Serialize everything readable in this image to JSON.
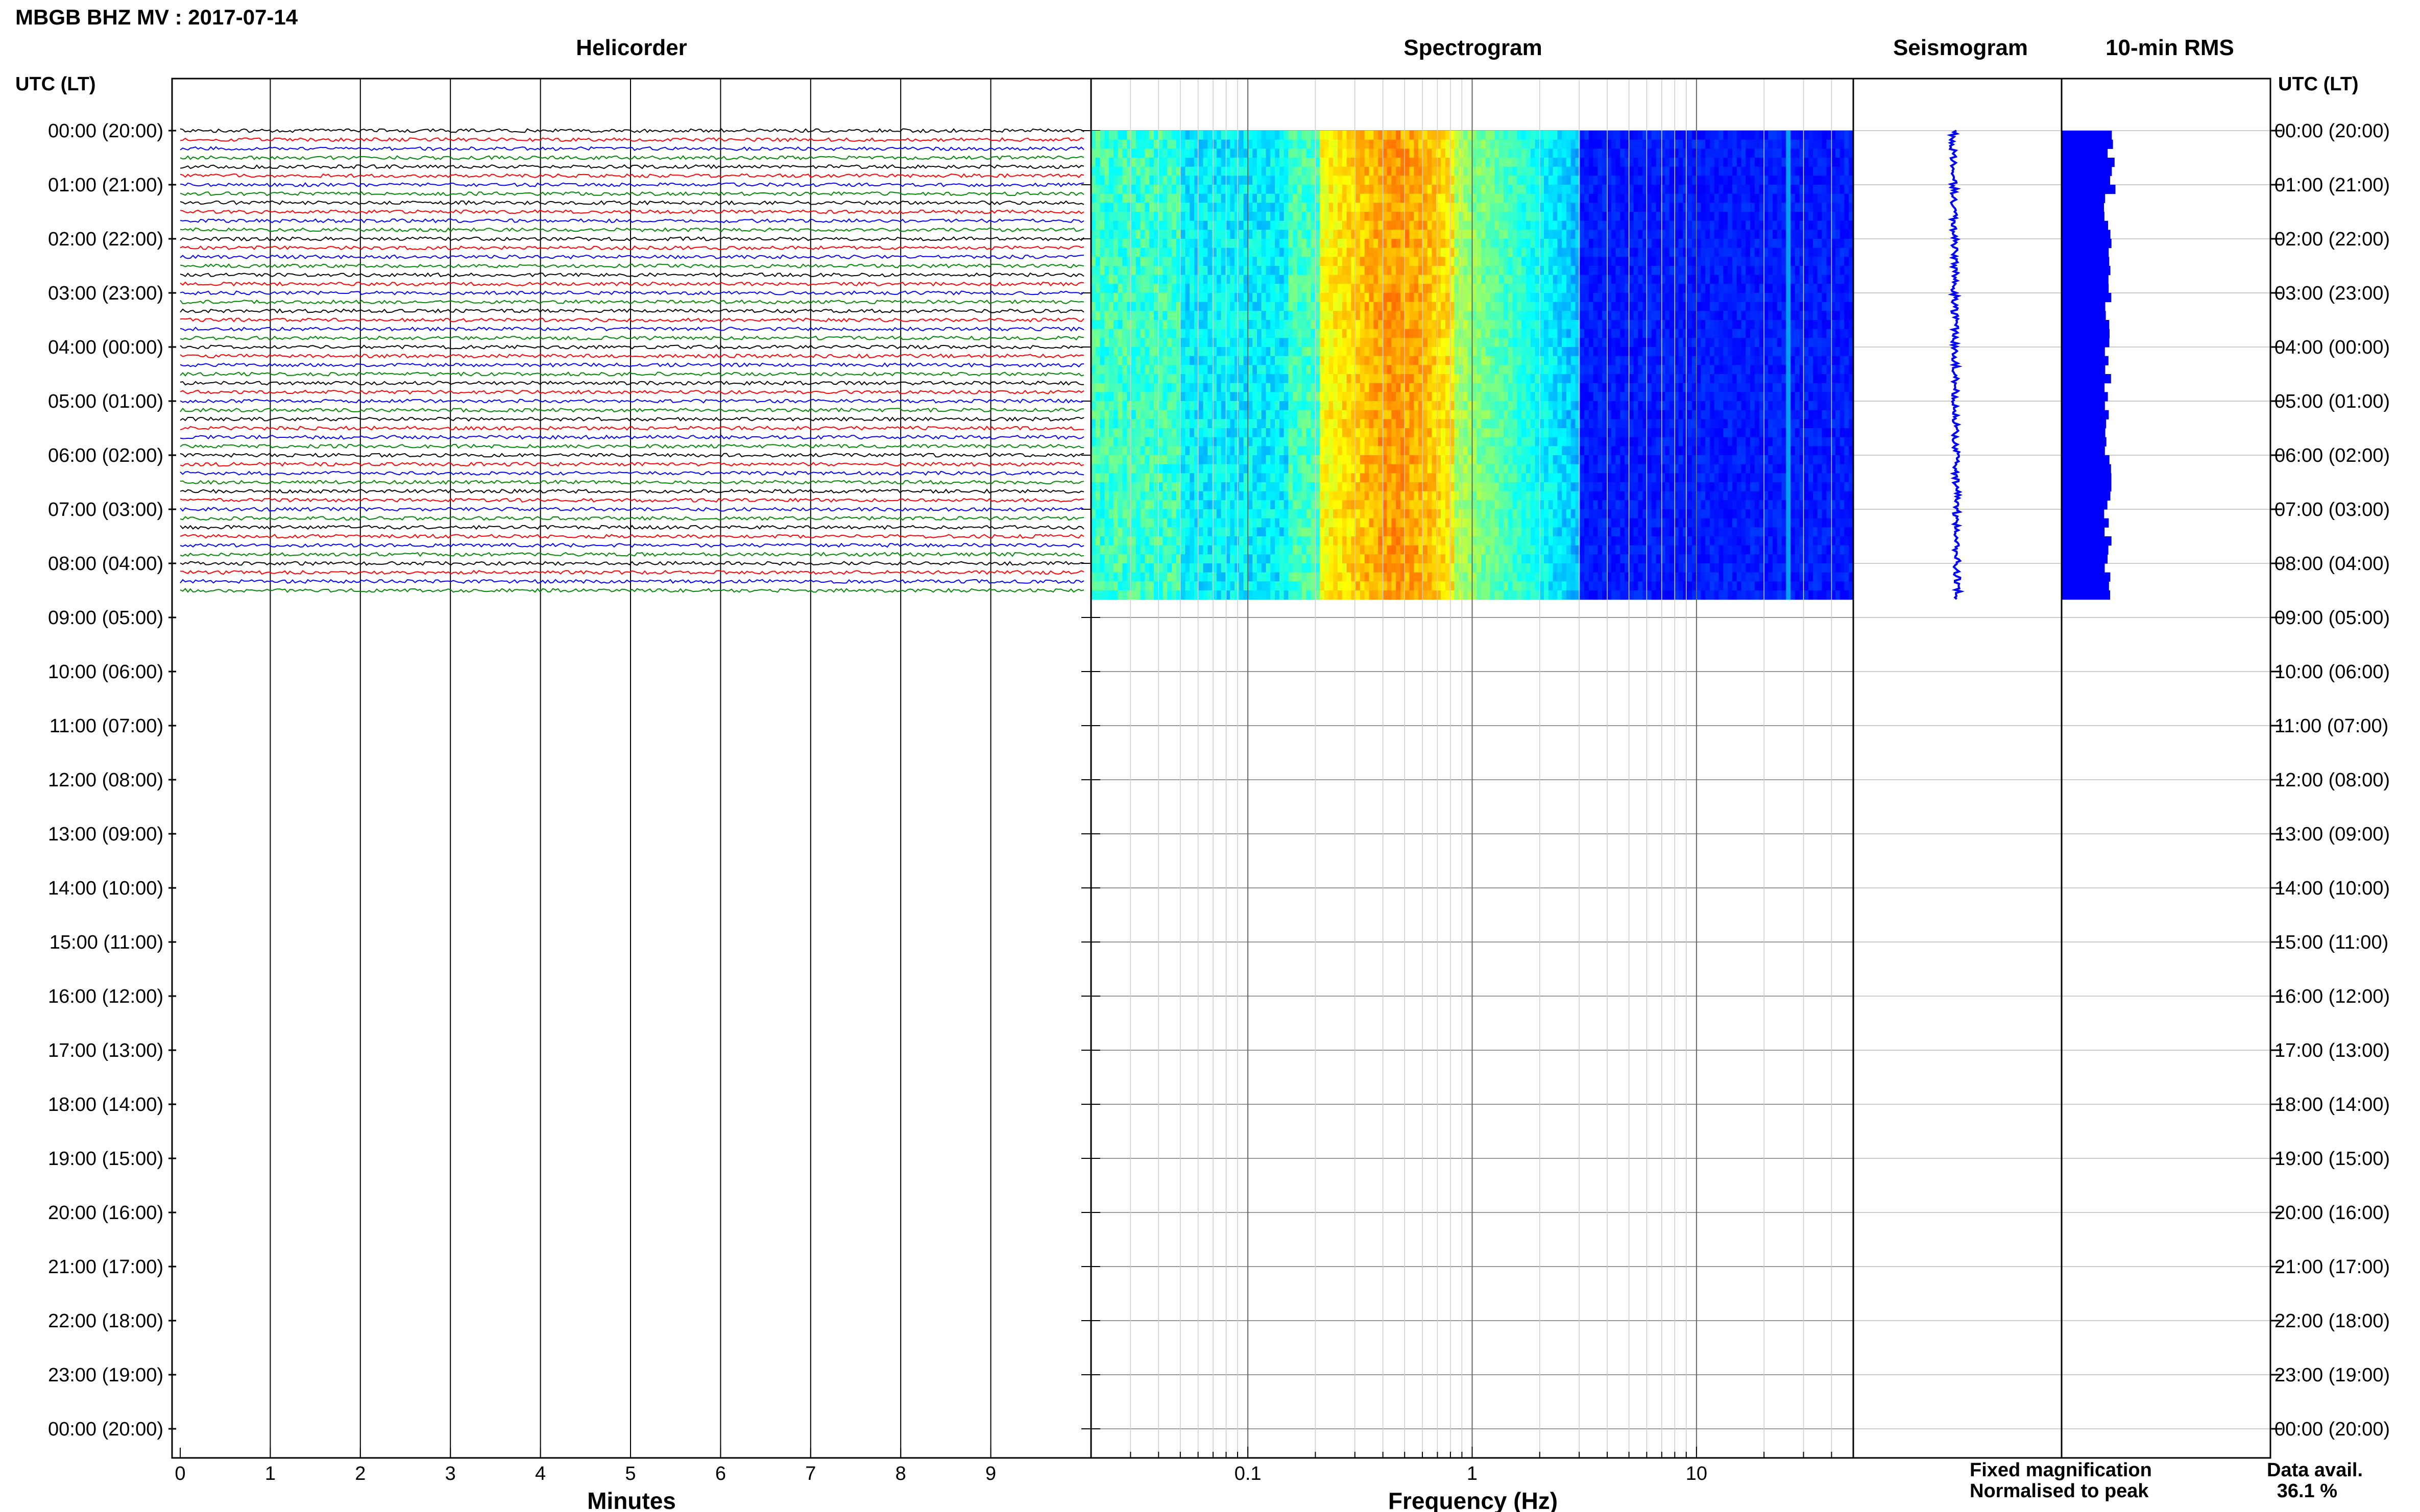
{
  "header": {
    "title": "MBGB BHZ MV : 2017-07-14",
    "time_axis_label_left": "UTC (LT)",
    "time_axis_label_right": "UTC (LT)"
  },
  "panels": {
    "helicorder": "Helicorder",
    "spectrogram": "Spectrogram",
    "seismogram": "Seismogram",
    "rms": "10-min RMS"
  },
  "legend": {
    "fixed": "Fixed magnification",
    "normalised": "Normalised to peak",
    "fixed_color": "#0000ff",
    "normalised_color": "#ff0000"
  },
  "availability": {
    "label": "Data avail.",
    "value": "36.1 %"
  },
  "colors": {
    "trace_cycle": [
      "#000000",
      "#ff0000",
      "#0000ff",
      "#008800"
    ],
    "spectrogram_colormap": "jet",
    "seismogram_color": "#0000ff",
    "rms_color": "#0000ff"
  },
  "chart_data": [
    {
      "type": "line",
      "name": "helicorder",
      "title": "Helicorder",
      "xlabel": "Minutes",
      "x_ticks": [
        "0",
        "1",
        "2",
        "3",
        "4",
        "5",
        "6",
        "7",
        "8",
        "9"
      ],
      "xlim": [
        0,
        10
      ],
      "trace_interval_min": 10,
      "traces_recorded": 52,
      "recorded_until_utc": "08:40",
      "ylabels": [
        "00:00 (20:00)",
        "01:00 (21:00)",
        "02:00 (22:00)",
        "03:00 (23:00)",
        "04:00 (00:00)",
        "05:00 (01:00)",
        "06:00 (02:00)",
        "07:00 (03:00)",
        "08:00 (04:00)",
        "09:00 (05:00)",
        "10:00 (06:00)",
        "11:00 (07:00)",
        "12:00 (08:00)",
        "13:00 (09:00)",
        "14:00 (10:00)",
        "15:00 (11:00)",
        "16:00 (12:00)",
        "17:00 (13:00)",
        "18:00 (14:00)",
        "19:00 (15:00)",
        "20:00 (16:00)",
        "21:00 (17:00)",
        "22:00 (18:00)",
        "23:00 (19:00)",
        "00:00 (20:00)"
      ]
    },
    {
      "type": "heatmap",
      "name": "spectrogram",
      "title": "Spectrogram",
      "xlabel": "Frequency (Hz)",
      "x_scale": "log",
      "xlim": [
        0.02,
        50
      ],
      "x_ticks": [
        "0.1",
        "1",
        "10"
      ],
      "peak_band_hz": [
        0.2,
        0.7
      ],
      "rows_recorded": 52
    },
    {
      "type": "line",
      "name": "seismogram",
      "title": "Seismogram",
      "rows_recorded": 52
    },
    {
      "type": "bar",
      "name": "rms",
      "title": "10-min RMS",
      "bars_recorded": 52
    }
  ]
}
